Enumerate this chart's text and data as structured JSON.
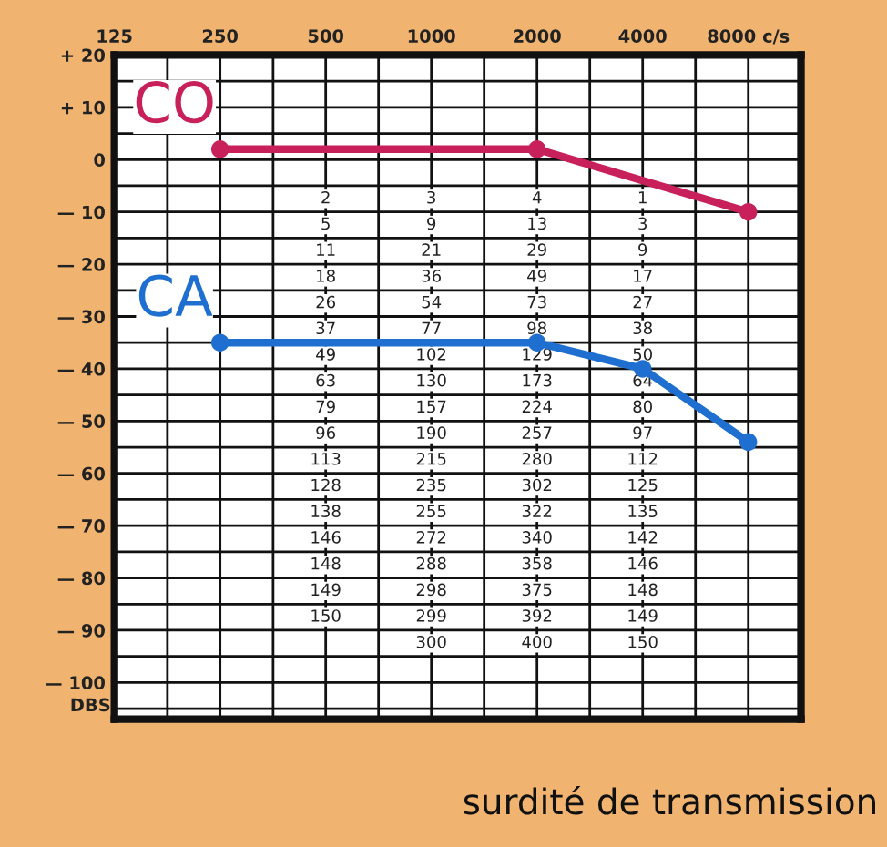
{
  "chart_data": {
    "type": "line",
    "series": [
      {
        "name": "CO",
        "color": "#c8205a",
        "x": [
          250,
          2000,
          8000
        ],
        "values": [
          2,
          2,
          -10
        ]
      },
      {
        "name": "CA",
        "color": "#1e6fd0",
        "x": [
          250,
          2000,
          4000,
          8000
        ],
        "values": [
          -35,
          -35,
          -40,
          -54
        ]
      }
    ],
    "marker": "circle",
    "line_style": "solid",
    "grid": true,
    "legend": false,
    "xlim": [
      125,
      11300
    ],
    "xticks": [
      125,
      {
        "value": 177,
        "label": null
      },
      250,
      {
        "value": 354,
        "label": null
      },
      500,
      {
        "value": 707,
        "label": null
      },
      1000,
      {
        "value": 1414,
        "label": null
      },
      2000,
      {
        "value": 2828,
        "label": null
      },
      4000,
      {
        "value": 5657,
        "label": null
      },
      {
        "value": 8000,
        "label": "8000 c/s"
      }
    ],
    "ylim": [
      -107,
      20
    ],
    "yticks": [
      {
        "value": 20,
        "label": "+ 20"
      },
      {
        "value": 15,
        "label": null
      },
      {
        "value": 10,
        "label": "+ 10"
      },
      {
        "value": 5,
        "label": null
      },
      0,
      {
        "value": -5,
        "label": null
      },
      {
        "value": -10,
        "label": "— 10"
      },
      {
        "value": -15,
        "label": null
      },
      {
        "value": -20,
        "label": "— 20"
      },
      {
        "value": -25,
        "label": null
      },
      {
        "value": -30,
        "label": "— 30"
      },
      {
        "value": -35,
        "label": null
      },
      {
        "value": -40,
        "label": "— 40"
      },
      {
        "value": -45,
        "label": null
      },
      {
        "value": -50,
        "label": "— 50"
      },
      {
        "value": -55,
        "label": null
      },
      {
        "value": -60,
        "label": "— 60"
      },
      {
        "value": -65,
        "label": null
      },
      {
        "value": -70,
        "label": "— 70"
      },
      {
        "value": -75,
        "label": null
      },
      {
        "value": -80,
        "label": "— 80"
      },
      {
        "value": -85,
        "label": null
      },
      {
        "value": -90,
        "label": "— 90"
      },
      {
        "value": -95,
        "label": null
      },
      {
        "value": -100,
        "label": "— 100"
      },
      {
        "value": -105,
        "label": null
      }
    ],
    "log": "x",
    "ylabel": "DBS",
    "annotations": [
      "surdité de transmission",
      {
        "text": "2",
        "x": 500,
        "y": -7.5
      },
      {
        "text": "5",
        "x": 500,
        "y": -12.5
      },
      {
        "text": "11",
        "x": 500,
        "y": -17.5
      },
      {
        "text": "18",
        "x": 500,
        "y": -22.5
      },
      {
        "text": "26",
        "x": 500,
        "y": -27.5
      },
      {
        "text": "37",
        "x": 500,
        "y": -32.5
      },
      {
        "text": "49",
        "x": 500,
        "y": -37.5
      },
      {
        "text": "63",
        "x": 500,
        "y": -42.5
      },
      {
        "text": "79",
        "x": 500,
        "y": -47.5
      },
      {
        "text": "96",
        "x": 500,
        "y": -52.5
      },
      {
        "text": "113",
        "x": 500,
        "y": -57.5
      },
      {
        "text": "128",
        "x": 500,
        "y": -62.5
      },
      {
        "text": "138",
        "x": 500,
        "y": -67.5
      },
      {
        "text": "146",
        "x": 500,
        "y": -72.5
      },
      {
        "text": "148",
        "x": 500,
        "y": -77.5
      },
      {
        "text": "149",
        "x": 500,
        "y": -82.5
      },
      {
        "text": "150",
        "x": 500,
        "y": -87.5
      },
      {
        "text": "3",
        "x": 1000,
        "y": -7.5
      },
      {
        "text": "9",
        "x": 1000,
        "y": -12.5
      },
      {
        "text": "21",
        "x": 1000,
        "y": -17.5
      },
      {
        "text": "36",
        "x": 1000,
        "y": -22.5
      },
      {
        "text": "54",
        "x": 1000,
        "y": -27.5
      },
      {
        "text": "77",
        "x": 1000,
        "y": -32.5
      },
      {
        "text": "102",
        "x": 1000,
        "y": -37.5
      },
      {
        "text": "130",
        "x": 1000,
        "y": -42.5
      },
      {
        "text": "157",
        "x": 1000,
        "y": -47.5
      },
      {
        "text": "190",
        "x": 1000,
        "y": -52.5
      },
      {
        "text": "215",
        "x": 1000,
        "y": -57.5
      },
      {
        "text": "235",
        "x": 1000,
        "y": -62.5
      },
      {
        "text": "255",
        "x": 1000,
        "y": -67.5
      },
      {
        "text": "272",
        "x": 1000,
        "y": -72.5
      },
      {
        "text": "288",
        "x": 1000,
        "y": -77.5
      },
      {
        "text": "298",
        "x": 1000,
        "y": -82.5
      },
      {
        "text": "299",
        "x": 1000,
        "y": -87.5
      },
      {
        "text": "300",
        "x": 1000,
        "y": -92.5
      },
      {
        "text": "4",
        "x": 2000,
        "y": -7.5
      },
      {
        "text": "13",
        "x": 2000,
        "y": -12.5
      },
      {
        "text": "29",
        "x": 2000,
        "y": -17.5
      },
      {
        "text": "49",
        "x": 2000,
        "y": -22.5
      },
      {
        "text": "73",
        "x": 2000,
        "y": -27.5
      },
      {
        "text": "98",
        "x": 2000,
        "y": -32.5
      },
      {
        "text": "129",
        "x": 2000,
        "y": -37.5
      },
      {
        "text": "173",
        "x": 2000,
        "y": -42.5
      },
      {
        "text": "224",
        "x": 2000,
        "y": -47.5
      },
      {
        "text": "257",
        "x": 2000,
        "y": -52.5
      },
      {
        "text": "280",
        "x": 2000,
        "y": -57.5
      },
      {
        "text": "302",
        "x": 2000,
        "y": -62.5
      },
      {
        "text": "322",
        "x": 2000,
        "y": -67.5
      },
      {
        "text": "340",
        "x": 2000,
        "y": -72.5
      },
      {
        "text": "358",
        "x": 2000,
        "y": -77.5
      },
      {
        "text": "375",
        "x": 2000,
        "y": -82.5
      },
      {
        "text": "392",
        "x": 2000,
        "y": -87.5
      },
      {
        "text": "400",
        "x": 2000,
        "y": -92.5
      },
      {
        "text": "1",
        "x": 4000,
        "y": -7.5
      },
      {
        "text": "3",
        "x": 4000,
        "y": -12.5
      },
      {
        "text": "9",
        "x": 4000,
        "y": -17.5
      },
      {
        "text": "17",
        "x": 4000,
        "y": -22.5
      },
      {
        "text": "27",
        "x": 4000,
        "y": -27.5
      },
      {
        "text": "38",
        "x": 4000,
        "y": -32.5
      },
      {
        "text": "50",
        "x": 4000,
        "y": -37.5
      },
      {
        "text": "64",
        "x": 4000,
        "y": -42.5
      },
      {
        "text": "80",
        "x": 4000,
        "y": -47.5
      },
      {
        "text": "97",
        "x": 4000,
        "y": -52.5
      },
      {
        "text": "112",
        "x": 4000,
        "y": -57.5
      },
      {
        "text": "125",
        "x": 4000,
        "y": -62.5
      },
      {
        "text": "135",
        "x": 4000,
        "y": -67.5
      },
      {
        "text": "142",
        "x": 4000,
        "y": -72.5
      },
      {
        "text": "146",
        "x": 4000,
        "y": -77.5
      },
      {
        "text": "148",
        "x": 4000,
        "y": -82.5
      },
      {
        "text": "149",
        "x": 4000,
        "y": -87.5
      },
      {
        "text": "150",
        "x": 4000,
        "y": -92.5
      }
    ]
  }
}
